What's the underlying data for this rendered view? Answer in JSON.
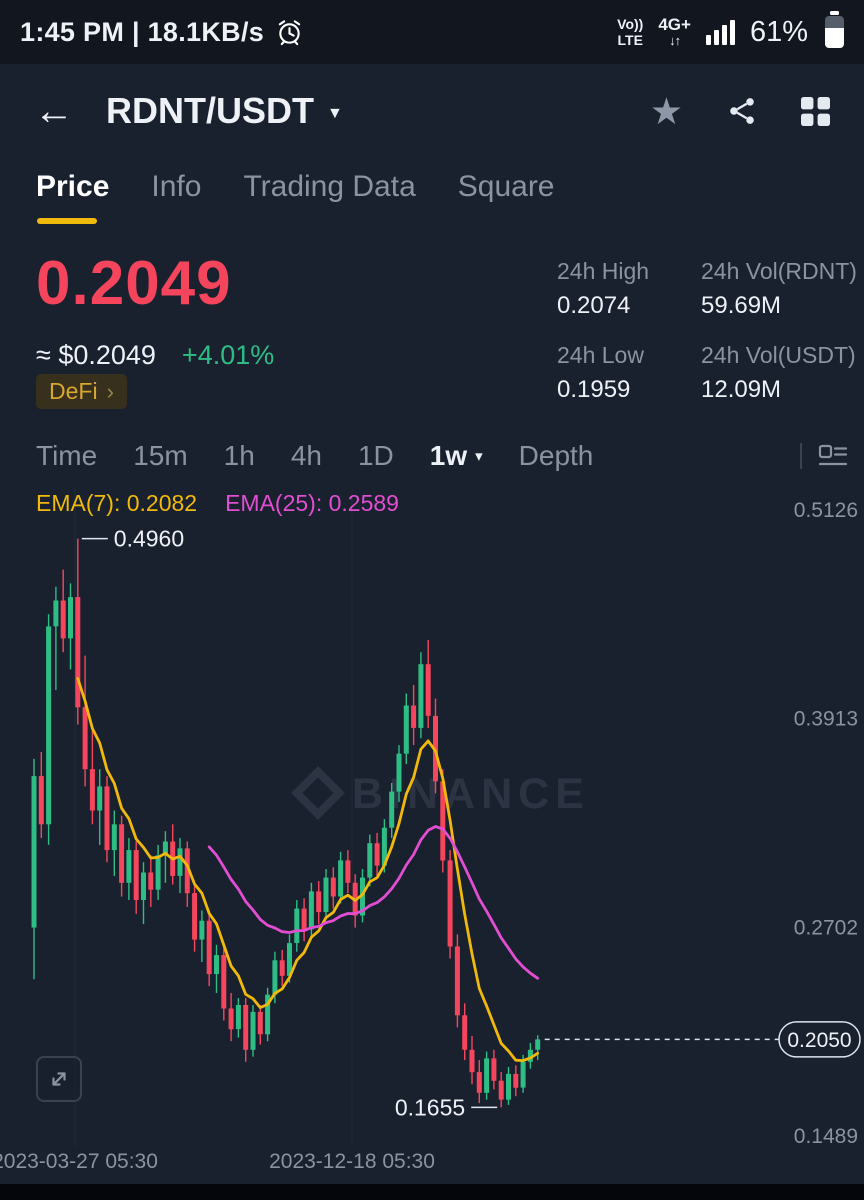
{
  "status_bar": {
    "left_text": "1:45 PM | 18.1KB/s",
    "volte_top": "Vo))",
    "volte_bottom": "LTE",
    "network": "4G+",
    "battery_percent": "61%"
  },
  "icons": {
    "back": "←",
    "caret_down": "▼",
    "tf_caret": "▾",
    "star": "★",
    "net_arrows": "↓↑",
    "tag_arrow": "›"
  },
  "header": {
    "title": "RDNT/USDT"
  },
  "tabs": [
    {
      "label": "Price"
    },
    {
      "label": "Info"
    },
    {
      "label": "Trading Data"
    },
    {
      "label": "Square"
    }
  ],
  "price": {
    "last": "0.2049",
    "fiat": "≈ $0.2049",
    "change": "+4.01%",
    "category_tag": "DeFi"
  },
  "stats": [
    {
      "label": "24h High",
      "value": "0.2074"
    },
    {
      "label": "24h Vol(RDNT)",
      "value": "59.69M"
    },
    {
      "label": "24h Low",
      "value": "0.1959"
    },
    {
      "label": "24h Vol(USDT)",
      "value": "12.09M"
    }
  ],
  "timeframes": {
    "items": [
      "Time",
      "15m",
      "1h",
      "4h",
      "1D",
      "1w",
      "Depth"
    ],
    "active": "1w"
  },
  "indicators": {
    "ema7_label": "EMA(7): 0.2082",
    "ema25_label": "EMA(25): 0.2589"
  },
  "watermark": "BINANCE",
  "chart_data": {
    "type": "candlestick",
    "interval": "1w",
    "y_min": 0.1489,
    "y_max": 0.5126,
    "y_axis_labels": [
      "0.5126",
      "0.3913",
      "0.2702",
      "0.1489"
    ],
    "x_labels": [
      "2023-03-27 05:30",
      "2023-12-18 05:30"
    ],
    "last_price": "0.2050",
    "last_price_value": 0.205,
    "annotations": {
      "high": {
        "text": "0.4960",
        "value": 0.496,
        "index": 6
      },
      "low": {
        "text": "0.1655",
        "value": 0.1655,
        "index": 64
      }
    },
    "colors": {
      "up": "#2EBD85",
      "down": "#F6465D",
      "ema7": "#F0B90B",
      "ema25": "#E14ED2"
    },
    "candles": [
      [
        0.27,
        0.368,
        0.24,
        0.358
      ],
      [
        0.358,
        0.372,
        0.322,
        0.33
      ],
      [
        0.33,
        0.452,
        0.318,
        0.445
      ],
      [
        0.445,
        0.468,
        0.408,
        0.46
      ],
      [
        0.46,
        0.478,
        0.43,
        0.438
      ],
      [
        0.438,
        0.47,
        0.42,
        0.462
      ],
      [
        0.462,
        0.496,
        0.388,
        0.398
      ],
      [
        0.398,
        0.428,
        0.352,
        0.362
      ],
      [
        0.362,
        0.385,
        0.33,
        0.338
      ],
      [
        0.338,
        0.362,
        0.318,
        0.352
      ],
      [
        0.352,
        0.358,
        0.308,
        0.315
      ],
      [
        0.315,
        0.338,
        0.3,
        0.33
      ],
      [
        0.33,
        0.335,
        0.288,
        0.296
      ],
      [
        0.296,
        0.322,
        0.286,
        0.315
      ],
      [
        0.315,
        0.32,
        0.278,
        0.286
      ],
      [
        0.286,
        0.308,
        0.272,
        0.302
      ],
      [
        0.302,
        0.312,
        0.282,
        0.292
      ],
      [
        0.292,
        0.318,
        0.286,
        0.312
      ],
      [
        0.312,
        0.326,
        0.296,
        0.32
      ],
      [
        0.32,
        0.33,
        0.295,
        0.3
      ],
      [
        0.3,
        0.322,
        0.29,
        0.316
      ],
      [
        0.316,
        0.32,
        0.282,
        0.29
      ],
      [
        0.29,
        0.296,
        0.256,
        0.263
      ],
      [
        0.263,
        0.28,
        0.25,
        0.274
      ],
      [
        0.274,
        0.278,
        0.236,
        0.243
      ],
      [
        0.243,
        0.26,
        0.232,
        0.254
      ],
      [
        0.254,
        0.258,
        0.216,
        0.223
      ],
      [
        0.223,
        0.232,
        0.204,
        0.211
      ],
      [
        0.211,
        0.229,
        0.206,
        0.225
      ],
      [
        0.225,
        0.229,
        0.192,
        0.199
      ],
      [
        0.199,
        0.225,
        0.195,
        0.221
      ],
      [
        0.221,
        0.225,
        0.202,
        0.208
      ],
      [
        0.208,
        0.235,
        0.204,
        0.231
      ],
      [
        0.231,
        0.256,
        0.226,
        0.251
      ],
      [
        0.251,
        0.257,
        0.236,
        0.242
      ],
      [
        0.242,
        0.266,
        0.238,
        0.261
      ],
      [
        0.261,
        0.286,
        0.256,
        0.281
      ],
      [
        0.281,
        0.287,
        0.262,
        0.269
      ],
      [
        0.269,
        0.296,
        0.265,
        0.291
      ],
      [
        0.291,
        0.297,
        0.272,
        0.279
      ],
      [
        0.279,
        0.304,
        0.275,
        0.299
      ],
      [
        0.299,
        0.305,
        0.281,
        0.288
      ],
      [
        0.288,
        0.314,
        0.284,
        0.309
      ],
      [
        0.309,
        0.315,
        0.29,
        0.296
      ],
      [
        0.296,
        0.301,
        0.27,
        0.277
      ],
      [
        0.277,
        0.304,
        0.273,
        0.299
      ],
      [
        0.299,
        0.324,
        0.294,
        0.319
      ],
      [
        0.319,
        0.325,
        0.3,
        0.306
      ],
      [
        0.306,
        0.333,
        0.302,
        0.328
      ],
      [
        0.328,
        0.354,
        0.322,
        0.349
      ],
      [
        0.349,
        0.376,
        0.343,
        0.371
      ],
      [
        0.371,
        0.406,
        0.365,
        0.399
      ],
      [
        0.399,
        0.411,
        0.376,
        0.386
      ],
      [
        0.386,
        0.43,
        0.38,
        0.423
      ],
      [
        0.423,
        0.437,
        0.386,
        0.393
      ],
      [
        0.393,
        0.403,
        0.348,
        0.355
      ],
      [
        0.355,
        0.362,
        0.302,
        0.309
      ],
      [
        0.309,
        0.315,
        0.252,
        0.259
      ],
      [
        0.259,
        0.266,
        0.212,
        0.219
      ],
      [
        0.219,
        0.226,
        0.193,
        0.199
      ],
      [
        0.199,
        0.207,
        0.179,
        0.186
      ],
      [
        0.186,
        0.193,
        0.168,
        0.174
      ],
      [
        0.174,
        0.198,
        0.17,
        0.194
      ],
      [
        0.194,
        0.199,
        0.176,
        0.181
      ],
      [
        0.181,
        0.186,
        0.1655,
        0.17
      ],
      [
        0.17,
        0.189,
        0.167,
        0.185
      ],
      [
        0.185,
        0.19,
        0.172,
        0.177
      ],
      [
        0.177,
        0.196,
        0.174,
        0.192
      ],
      [
        0.192,
        0.203,
        0.188,
        0.199
      ],
      [
        0.199,
        0.2074,
        0.193,
        0.205
      ]
    ]
  }
}
